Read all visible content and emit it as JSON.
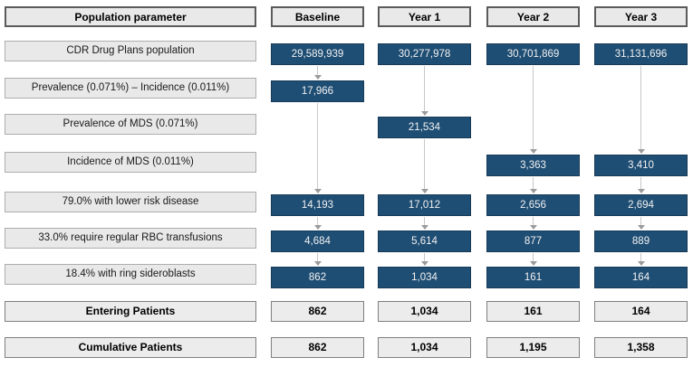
{
  "header": {
    "parameter_label": "Population parameter",
    "columns": [
      "Baseline",
      "Year 1",
      "Year 2",
      "Year 3"
    ]
  },
  "rows": [
    {
      "name": "cdr-population",
      "kind": "flow",
      "label": "CDR Drug Plans population",
      "values": [
        "29,589,939",
        "30,277,978",
        "30,701,869",
        "31,131,696"
      ]
    },
    {
      "name": "prevalence-incidence",
      "kind": "flow",
      "label": "Prevalence (0.071%) – Incidence (0.011%)",
      "values": [
        "17,966",
        null,
        null,
        null
      ]
    },
    {
      "name": "prevalence-mds",
      "kind": "flow",
      "label": "Prevalence of MDS (0.071%)",
      "values": [
        null,
        "21,534",
        null,
        null
      ]
    },
    {
      "name": "incidence-mds",
      "kind": "flow",
      "label": "Incidence of MDS (0.011%)",
      "values": [
        null,
        null,
        "3,363",
        "3,410"
      ]
    },
    {
      "name": "lower-risk-disease",
      "kind": "flow",
      "label": "79.0% with lower risk disease",
      "values": [
        "14,193",
        "17,012",
        "2,656",
        "2,694"
      ]
    },
    {
      "name": "rbc-transfusions",
      "kind": "flow",
      "label": "33.0% require regular RBC transfusions",
      "values": [
        "4,684",
        "5,614",
        "877",
        "889"
      ]
    },
    {
      "name": "ring-sideroblasts",
      "kind": "flow",
      "label": "18.4% with ring sideroblasts",
      "values": [
        "862",
        "1,034",
        "161",
        "164"
      ]
    },
    {
      "name": "entering-patients",
      "kind": "summary",
      "label": "Entering Patients",
      "values": [
        "862",
        "1,034",
        "161",
        "164"
      ]
    },
    {
      "name": "cumulative-patients",
      "kind": "summary",
      "label": "Cumulative Patients",
      "values": [
        "862",
        "1,034",
        "1,195",
        "1,358"
      ]
    }
  ],
  "arrows": [
    {
      "column": 0,
      "from_row": 0,
      "to_row": 1
    },
    {
      "column": 0,
      "from_row": 1,
      "to_row": 4
    },
    {
      "column": 0,
      "from_row": 4,
      "to_row": 5
    },
    {
      "column": 0,
      "from_row": 5,
      "to_row": 6
    },
    {
      "column": 1,
      "from_row": 0,
      "to_row": 2
    },
    {
      "column": 1,
      "from_row": 2,
      "to_row": 4
    },
    {
      "column": 1,
      "from_row": 4,
      "to_row": 5
    },
    {
      "column": 1,
      "from_row": 5,
      "to_row": 6
    },
    {
      "column": 2,
      "from_row": 0,
      "to_row": 3
    },
    {
      "column": 2,
      "from_row": 3,
      "to_row": 4
    },
    {
      "column": 2,
      "from_row": 4,
      "to_row": 5
    },
    {
      "column": 2,
      "from_row": 5,
      "to_row": 6
    },
    {
      "column": 3,
      "from_row": 0,
      "to_row": 3
    },
    {
      "column": 3,
      "from_row": 3,
      "to_row": 4
    },
    {
      "column": 3,
      "from_row": 4,
      "to_row": 5
    },
    {
      "column": 3,
      "from_row": 5,
      "to_row": 6
    }
  ],
  "colors": {
    "flow_box_fill": "#1f4e74",
    "flow_box_border": "#173a57",
    "flow_box_text": "#f2f2f2",
    "label_box_fill": "#e9e9e9",
    "label_box_border": "#adadad",
    "header_border": "#5b5b5b",
    "summary_border": "#7f7f7f",
    "arrow_line": "#c8c8c8",
    "arrow_head": "#9b9b9b"
  }
}
